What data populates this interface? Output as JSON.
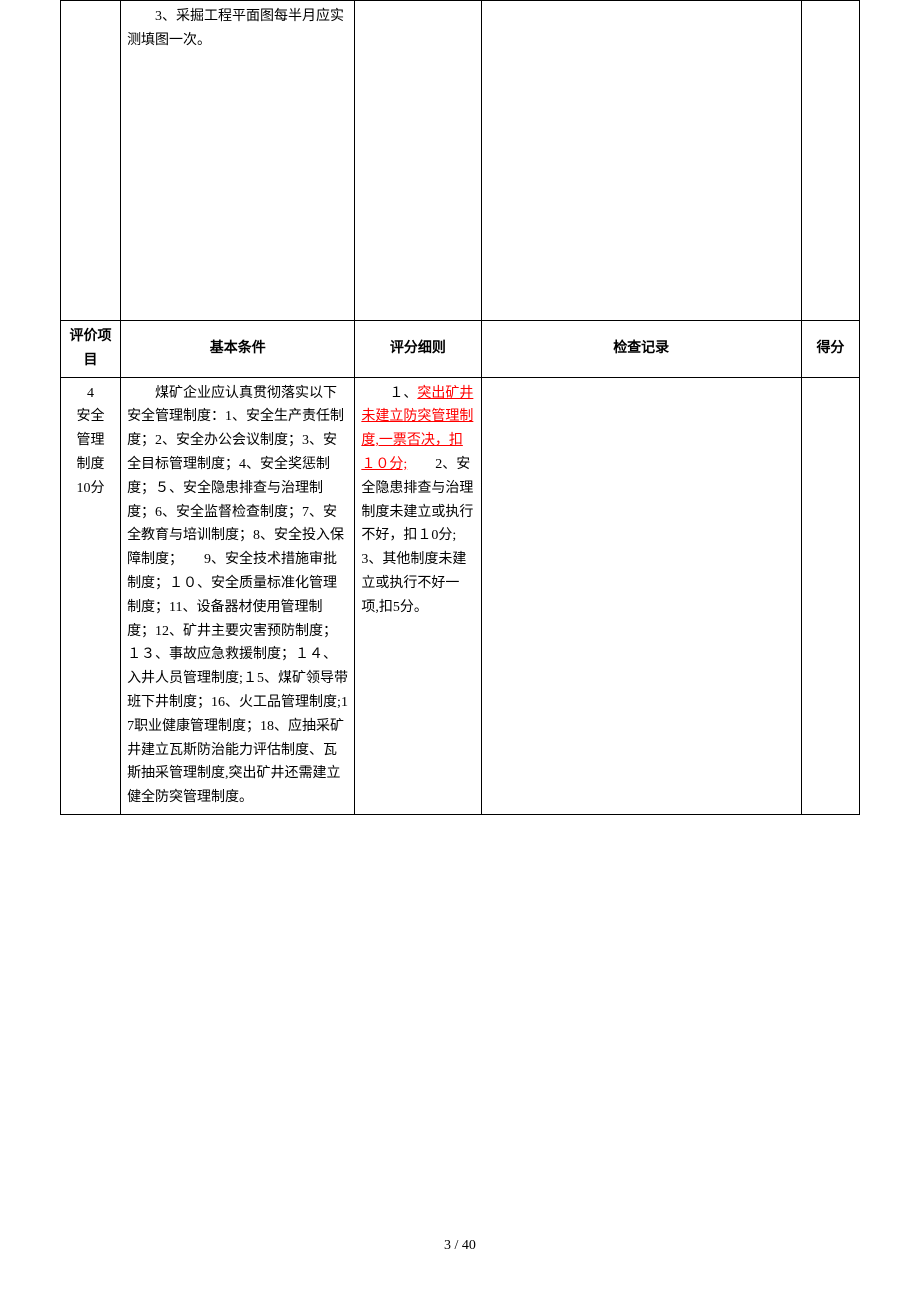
{
  "table1": {
    "row1": {
      "col2": "　　3、采掘工程平面图每半月应实测填图一次。"
    }
  },
  "headers": {
    "col1": "评价项目",
    "col2": "基本条件",
    "col3": "评分细则",
    "col4": "检查记录",
    "col5": "得分"
  },
  "table2": {
    "row1": {
      "col1_num": "4",
      "col1_line2": "安全",
      "col1_line3": "管理",
      "col1_line4": "制度",
      "col1_line5": "10分",
      "col2": "　　煤矿企业应认真贯彻落实以下安全管理制度：1、安全生产责任制度；2、安全办公会议制度；3、安全目标管理制度；4、安全奖惩制度；５、安全隐患排查与治理制度；6、安全监督检查制度；7、安全教育与培训制度；8、安全投入保障制度；　　9、安全技术措施审批制度；１０、安全质量标准化管理制度；11、设备器材使用管理制度；12、矿井主要灾害预防制度；１３、事故应急救援制度；１４、入井人员管理制度;１5、煤矿领导带班下井制度；16、火工品管理制度;17职业健康管理制度；18、应抽采矿井建立瓦斯防治能力评估制度、瓦斯抽采管理制度,突出矿井还需建立健全防突管理制度。",
      "col3_part1": "　　１、",
      "col3_highlight": "突出矿井未建立防突管理制度,一票否决，扣１０分;",
      "col3_part2": "　　2、安全隐患排查与治理制度未建立或执行不好，扣１0分;　　3、其他制度未建立或执行不好一项,扣5分。"
    }
  },
  "footer": "3 / 40"
}
